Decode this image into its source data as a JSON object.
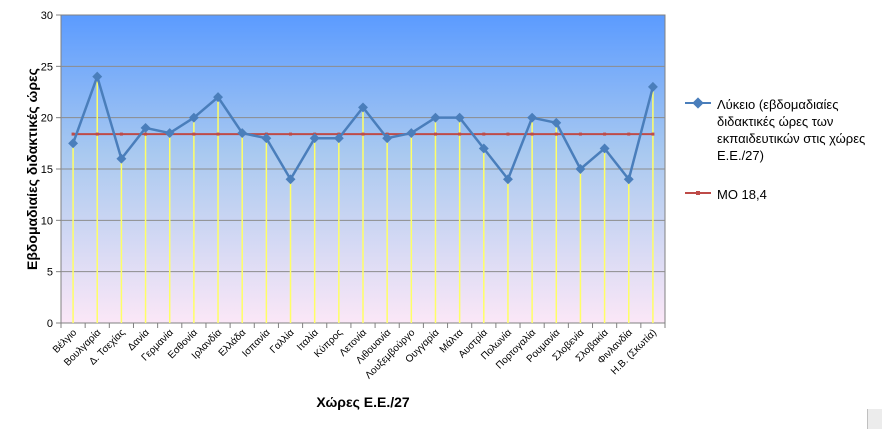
{
  "chart_data": {
    "type": "line",
    "categories": [
      "Βέλγιο",
      "Βουλγαρία",
      "Δ. Τσεχίας",
      "Δανία",
      "Γερμανία",
      "Εσθονία",
      "Ιρλανδία",
      "Ελλάδα",
      "Ισπανία",
      "Γαλλία",
      "Ιταλία",
      "Κύπρος",
      "Λετονία",
      "Λιθουανία",
      "Λουξεμβούργο",
      "Ουγγαρία",
      "Μάλτα",
      "Αυστρία",
      "Πολωνία",
      "Πορτογαλία",
      "Ρουμανία",
      "Σλοβενία",
      "Σλοβακία",
      "Φινλανδία",
      "Η.Β. (Σκωτία)"
    ],
    "series": [
      {
        "name": "Λύκειο (εβδομαδιαίες διδακτικές ώρες των εκπαιδευτικών στις χώρες Ε.Ε./27)",
        "values": [
          17.5,
          24,
          16,
          19,
          18.5,
          20,
          22,
          18.5,
          18,
          14,
          18,
          18,
          21,
          18,
          18.5,
          20,
          20,
          17,
          14,
          20,
          19.5,
          15,
          17,
          14,
          23
        ],
        "color": "#4a7ebb"
      },
      {
        "name": "ΜΟ 18,4",
        "values": [
          18.4,
          18.4,
          18.4,
          18.4,
          18.4,
          18.4,
          18.4,
          18.4,
          18.4,
          18.4,
          18.4,
          18.4,
          18.4,
          18.4,
          18.4,
          18.4,
          18.4,
          18.4,
          18.4,
          18.4,
          18.4,
          18.4,
          18.4,
          18.4,
          18.4
        ],
        "color": "#be4b48"
      }
    ],
    "xlabel": "Χώρες Ε.Ε./27",
    "ylabel": "Εβδομαδιαίες διδακτικές ώρες",
    "ylim": [
      0,
      30
    ],
    "yticks": [
      0,
      5,
      10,
      15,
      20,
      25,
      30
    ],
    "grid": true,
    "legend_position": "right",
    "drop_line_color": "#ffff66"
  }
}
